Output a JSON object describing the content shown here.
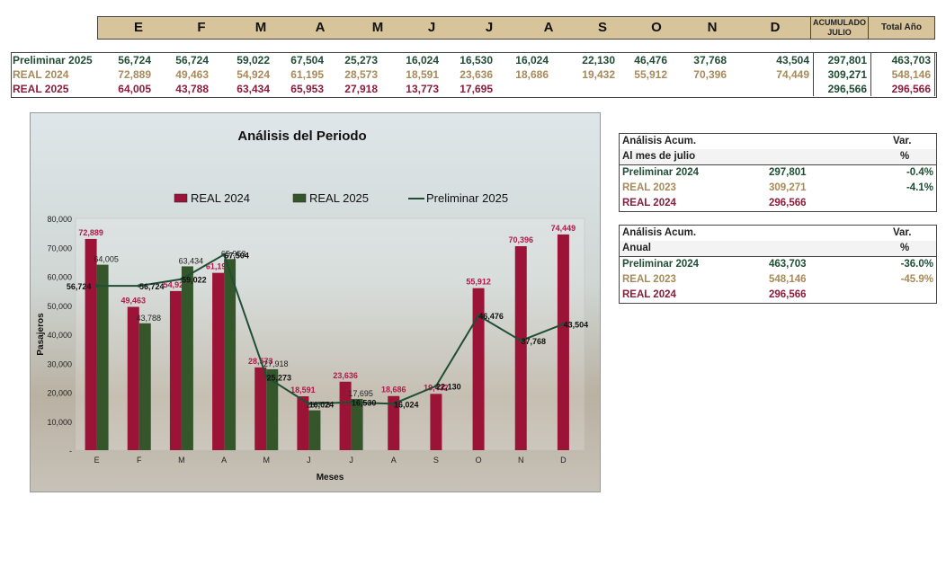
{
  "table": {
    "months": [
      "E",
      "F",
      "M",
      "A",
      "M",
      "J",
      "J",
      "A",
      "S",
      "O",
      "N",
      "D"
    ],
    "acum_header": "ACUMULADO JULIO",
    "total_header": "Total Año",
    "rows": [
      {
        "label": "Preliminar 2025",
        "values": [
          "56,724",
          "56,724",
          "59,022",
          "67,504",
          "25,273",
          "16,024",
          "16,530",
          "16,024",
          "22,130",
          "46,476",
          "37,768",
          "43,504"
        ],
        "acum": "297,801",
        "total": "463,703"
      },
      {
        "label": "REAL 2024",
        "values": [
          "72,889",
          "49,463",
          "54,924",
          "61,195",
          "28,573",
          "18,591",
          "23,636",
          "18,686",
          "19,432",
          "55,912",
          "70,396",
          "74,449"
        ],
        "acum": "309,271",
        "total": "548,146"
      },
      {
        "label": "REAL 2025",
        "values": [
          "64,005",
          "43,788",
          "63,434",
          "65,953",
          "27,918",
          "13,773",
          "17,695",
          "",
          "",
          "",
          "",
          ""
        ],
        "acum": "296,566",
        "total": "296,566"
      }
    ]
  },
  "chart_data": {
    "type": "bar",
    "title": "Análisis del Periodo",
    "xlabel": "Meses",
    "ylabel": "Pasajeros",
    "categories": [
      "E",
      "F",
      "M",
      "A",
      "M",
      "J",
      "J",
      "A",
      "S",
      "O",
      "N",
      "D"
    ],
    "ylim": [
      0,
      80000
    ],
    "yticks": [
      "-",
      "10,000",
      "20,000",
      "30,000",
      "40,000",
      "50,000",
      "60,000",
      "70,000",
      "80,000"
    ],
    "legend_position": "top",
    "series": [
      {
        "name": "REAL 2024",
        "kind": "bar",
        "color": "#9b1337",
        "values": [
          72889,
          49463,
          54924,
          61195,
          28573,
          18591,
          23636,
          18686,
          19432,
          55912,
          70396,
          74449
        ],
        "labels": [
          "72,889",
          "49,463",
          "54,924",
          "61,195",
          "28,573",
          "18,591",
          "23,636",
          "18,686",
          "19,432",
          "55,912",
          "70,396",
          "74,449"
        ]
      },
      {
        "name": "REAL 2025",
        "kind": "bar",
        "color": "#35562b",
        "values": [
          64005,
          43788,
          63434,
          65953,
          27918,
          13773,
          17695,
          null,
          null,
          null,
          null,
          null
        ],
        "labels": [
          "64,005",
          "43,788",
          "63,434",
          "65,953",
          "27,918",
          "13,773",
          "17,695",
          "",
          "",
          "",
          "",
          ""
        ]
      },
      {
        "name": "Preliminar 2025",
        "kind": "line",
        "color": "#1f4e35",
        "values": [
          56724,
          56724,
          59022,
          67504,
          25273,
          16024,
          16530,
          16024,
          22130,
          46476,
          37768,
          43504
        ],
        "labels": [
          "56,724",
          "56,724",
          "59,022",
          "67,504",
          "25,273",
          "16,024",
          "16,530",
          "16,024",
          "22,130",
          "46,476",
          "37,768",
          "43,504"
        ]
      }
    ]
  },
  "side1": {
    "title1": "Análisis  Acum.",
    "title2": "Al mes de julio",
    "var1": "Var.",
    "var2": "%",
    "rows": [
      {
        "label": "Preliminar 2024",
        "value": "297,801",
        "pct": "-0.4%"
      },
      {
        "label": "REAL 2023",
        "value": "309,271",
        "pct": "-4.1%"
      },
      {
        "label": "REAL 2024",
        "value": "296,566",
        "pct": ""
      }
    ]
  },
  "side2": {
    "title1": "Análisis  Acum.",
    "title2": "Anual",
    "var1": "Var.",
    "var2": "%",
    "rows": [
      {
        "label": "Preliminar 2024",
        "value": "463,703",
        "pct": "-36.0%"
      },
      {
        "label": "REAL 2023",
        "value": "548,146",
        "pct": "-45.9%"
      },
      {
        "label": "REAL 2024",
        "value": "296,566",
        "pct": ""
      }
    ]
  },
  "colors": {
    "preliminar": "#1f4e35",
    "real_prev": "#a88a5a",
    "real_curr": "#8c1c3c",
    "header_bg": "#d8c49a"
  }
}
